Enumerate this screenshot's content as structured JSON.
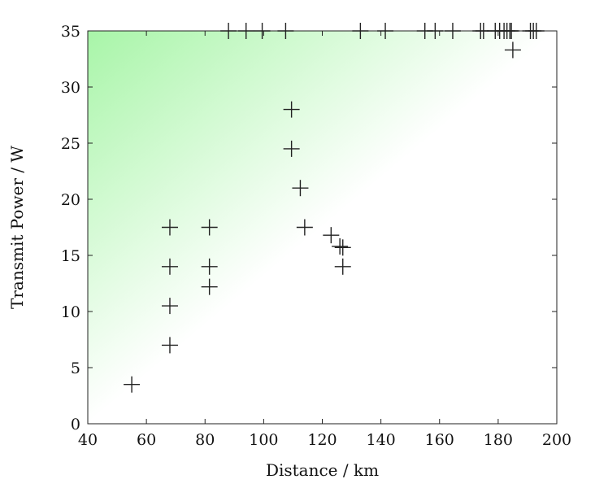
{
  "chart_data": {
    "type": "scatter",
    "title": "",
    "xlabel": "Distance / km",
    "ylabel": "Transmit Power / W",
    "xlim": [
      40,
      200
    ],
    "ylim": [
      0,
      35
    ],
    "x_ticks": [
      40,
      60,
      80,
      100,
      120,
      140,
      160,
      180,
      200
    ],
    "y_ticks": [
      0,
      5,
      10,
      15,
      20,
      25,
      30,
      35
    ],
    "x_tick_labels": [
      "40",
      "60",
      "80",
      "100",
      "120",
      "140",
      "160",
      "180",
      "200"
    ],
    "y_tick_labels": [
      "0",
      "5",
      "10",
      "15",
      "20",
      "25",
      "30",
      "35"
    ],
    "grid": false,
    "marker": "plus",
    "marker_color": "#222222",
    "background_gradient": {
      "description": "green shaded triangle from upper-left corner fading toward the diagonal",
      "color_strong": "#a8f5a8",
      "color_fade": "#ffffff"
    },
    "series": [
      {
        "x": [
          55,
          68,
          68,
          68,
          68,
          81.5,
          81.5,
          81.5,
          109.5,
          109.5,
          112.5,
          114,
          123,
          126,
          127,
          127,
          185,
          88,
          94,
          99.5,
          107.5,
          133,
          141.5,
          155,
          158.5,
          164.5,
          174,
          175,
          179,
          180.5,
          182,
          183,
          184,
          184.5,
          191,
          192,
          193
        ],
        "y": [
          3.5,
          7,
          10.5,
          14,
          17.5,
          12.2,
          14,
          17.5,
          24.5,
          28,
          21,
          17.5,
          16.8,
          15.8,
          15.7,
          14,
          33.3,
          35,
          35,
          35,
          35,
          35,
          35,
          35,
          35,
          35,
          35,
          35,
          35,
          35,
          35,
          35,
          35,
          35,
          35,
          35,
          35
        ]
      }
    ]
  }
}
